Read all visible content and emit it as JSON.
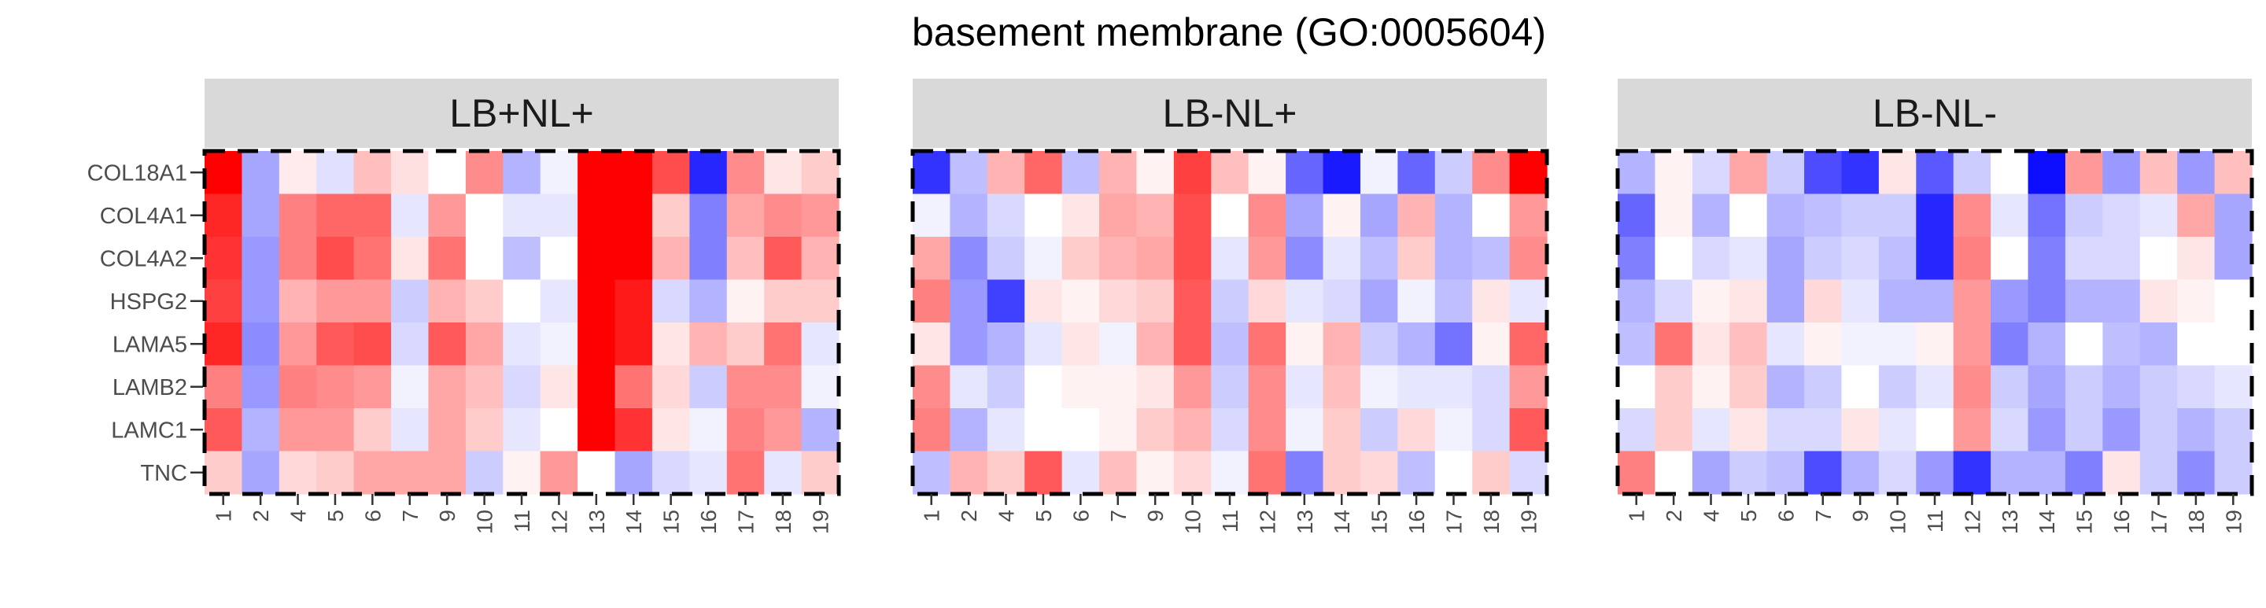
{
  "chart_data": {
    "type": "heatmap",
    "title": "basement membrane (GO:0005604)",
    "genes": [
      "COL18A1",
      "COL4A1",
      "COL4A2",
      "HSPG2",
      "LAMA5",
      "LAMB2",
      "LAMC1",
      "TNC"
    ],
    "color_scale": {
      "low": "#0000ff",
      "mid": "#ffffff",
      "high": "#ff0000",
      "min": -1,
      "max": 1
    },
    "panels": [
      {
        "title": "LB+NL+",
        "x": [
          "1",
          "2",
          "4",
          "5",
          "6",
          "7",
          "9",
          "10",
          "11",
          "12",
          "13",
          "14",
          "15",
          "16",
          "17",
          "18",
          "19"
        ],
        "values": [
          [
            1.0,
            -0.35,
            0.08,
            -0.12,
            0.25,
            0.12,
            0.0,
            0.45,
            -0.3,
            -0.05,
            1.0,
            1.0,
            0.7,
            -0.85,
            0.45,
            0.1,
            0.2
          ],
          [
            0.85,
            -0.35,
            0.5,
            0.6,
            0.6,
            -0.1,
            0.4,
            0.0,
            -0.1,
            -0.1,
            1.0,
            1.0,
            0.2,
            -0.5,
            0.35,
            0.45,
            0.4
          ],
          [
            0.8,
            -0.4,
            0.5,
            0.7,
            0.55,
            0.1,
            0.55,
            0.0,
            -0.25,
            0.0,
            1.0,
            1.0,
            0.3,
            -0.5,
            0.25,
            0.65,
            0.3
          ],
          [
            0.75,
            -0.4,
            0.3,
            0.4,
            0.4,
            -0.2,
            0.3,
            0.2,
            0.0,
            -0.1,
            1.0,
            0.9,
            -0.15,
            -0.3,
            0.05,
            0.2,
            0.2
          ],
          [
            0.85,
            -0.45,
            0.4,
            0.65,
            0.7,
            -0.15,
            0.65,
            0.35,
            -0.1,
            -0.05,
            1.0,
            0.9,
            0.1,
            0.3,
            0.2,
            0.55,
            -0.1
          ],
          [
            0.5,
            -0.4,
            0.5,
            0.45,
            0.4,
            -0.05,
            0.35,
            0.25,
            -0.15,
            0.1,
            1.0,
            0.55,
            0.15,
            -0.2,
            0.45,
            0.45,
            -0.05
          ],
          [
            0.65,
            -0.3,
            0.4,
            0.4,
            0.2,
            -0.1,
            0.35,
            0.2,
            -0.1,
            0.0,
            1.0,
            0.8,
            0.1,
            -0.05,
            0.5,
            0.4,
            -0.3
          ],
          [
            0.2,
            -0.35,
            0.15,
            0.2,
            0.35,
            0.35,
            0.35,
            -0.2,
            0.05,
            0.4,
            0.0,
            -0.35,
            -0.15,
            -0.1,
            0.55,
            -0.1,
            0.2
          ]
        ]
      },
      {
        "title": "LB-NL+",
        "x": [
          "1",
          "2",
          "4",
          "5",
          "6",
          "7",
          "9",
          "10",
          "11",
          "12",
          "13",
          "14",
          "15",
          "16",
          "17",
          "18",
          "19"
        ],
        "values": [
          [
            -0.8,
            -0.25,
            0.3,
            0.6,
            -0.25,
            0.3,
            0.05,
            0.75,
            0.25,
            0.05,
            -0.6,
            -0.9,
            -0.05,
            -0.6,
            -0.2,
            0.45,
            1.0
          ],
          [
            -0.05,
            -0.3,
            -0.15,
            0.0,
            0.1,
            0.35,
            0.3,
            0.7,
            0.0,
            0.45,
            -0.35,
            0.05,
            -0.35,
            0.3,
            -0.3,
            0.0,
            0.4
          ],
          [
            0.35,
            -0.45,
            -0.2,
            -0.05,
            0.2,
            0.3,
            0.35,
            0.7,
            -0.1,
            0.4,
            -0.45,
            -0.1,
            -0.25,
            0.2,
            -0.3,
            -0.25,
            0.45
          ],
          [
            0.5,
            -0.4,
            -0.75,
            0.1,
            0.05,
            0.15,
            0.2,
            0.65,
            -0.2,
            0.15,
            -0.1,
            -0.15,
            -0.35,
            -0.05,
            -0.25,
            0.1,
            -0.1
          ],
          [
            0.1,
            -0.4,
            -0.3,
            -0.1,
            0.1,
            -0.05,
            0.3,
            0.65,
            -0.25,
            0.55,
            0.05,
            0.3,
            -0.2,
            -0.3,
            -0.55,
            0.05,
            0.6
          ],
          [
            0.45,
            -0.1,
            -0.2,
            0.0,
            0.05,
            0.05,
            0.1,
            0.4,
            -0.2,
            0.45,
            -0.1,
            0.25,
            -0.05,
            -0.1,
            -0.1,
            -0.15,
            0.4
          ],
          [
            0.5,
            -0.3,
            -0.1,
            0.0,
            0.0,
            0.05,
            0.2,
            0.3,
            -0.15,
            0.45,
            -0.05,
            0.2,
            -0.2,
            0.15,
            -0.05,
            -0.15,
            0.65
          ],
          [
            -0.25,
            0.3,
            0.2,
            0.65,
            -0.1,
            0.25,
            0.05,
            0.15,
            -0.05,
            0.55,
            -0.5,
            0.2,
            0.15,
            -0.25,
            0.0,
            0.2,
            -0.15
          ]
        ]
      },
      {
        "title": "LB-NL-",
        "x": [
          "1",
          "2",
          "4",
          "5",
          "6",
          "7",
          "9",
          "10",
          "11",
          "12",
          "13",
          "14",
          "15",
          "16",
          "17",
          "18",
          "19"
        ],
        "values": [
          [
            -0.3,
            0.05,
            -0.15,
            0.35,
            -0.2,
            -0.7,
            -0.8,
            0.1,
            -0.65,
            -0.2,
            0.0,
            -0.95,
            0.4,
            -0.4,
            0.25,
            -0.4,
            0.25
          ],
          [
            -0.6,
            0.05,
            -0.3,
            0.0,
            -0.3,
            -0.25,
            -0.2,
            -0.2,
            -0.85,
            0.45,
            -0.1,
            -0.55,
            -0.2,
            -0.15,
            -0.1,
            0.35,
            -0.35
          ],
          [
            -0.5,
            0.0,
            -0.15,
            -0.1,
            -0.35,
            -0.2,
            -0.15,
            -0.25,
            -0.85,
            0.5,
            0.0,
            -0.5,
            -0.15,
            -0.15,
            0.0,
            0.1,
            -0.35
          ],
          [
            -0.3,
            -0.15,
            0.05,
            0.1,
            -0.35,
            0.15,
            -0.1,
            -0.3,
            -0.3,
            0.4,
            -0.4,
            -0.5,
            -0.3,
            -0.3,
            0.1,
            0.05,
            0.0
          ],
          [
            -0.25,
            0.55,
            0.1,
            0.25,
            -0.1,
            0.05,
            -0.05,
            -0.05,
            0.05,
            0.4,
            -0.5,
            -0.3,
            0.0,
            -0.25,
            -0.3,
            0.0,
            0.0
          ],
          [
            0.0,
            0.2,
            0.05,
            0.2,
            -0.3,
            -0.2,
            0.0,
            -0.2,
            -0.1,
            0.45,
            -0.2,
            -0.35,
            -0.2,
            -0.3,
            -0.2,
            -0.15,
            -0.1
          ],
          [
            -0.15,
            0.2,
            -0.1,
            0.1,
            -0.15,
            -0.15,
            0.1,
            -0.1,
            0.0,
            0.4,
            -0.15,
            -0.4,
            -0.2,
            -0.4,
            -0.2,
            -0.3,
            -0.2
          ],
          [
            0.5,
            0.0,
            -0.35,
            -0.2,
            -0.25,
            -0.7,
            -0.3,
            -0.15,
            -0.4,
            -0.8,
            -0.3,
            -0.3,
            -0.5,
            0.1,
            -0.2,
            -0.45,
            -0.2
          ]
        ]
      }
    ],
    "legend": "none",
    "grid": false
  }
}
